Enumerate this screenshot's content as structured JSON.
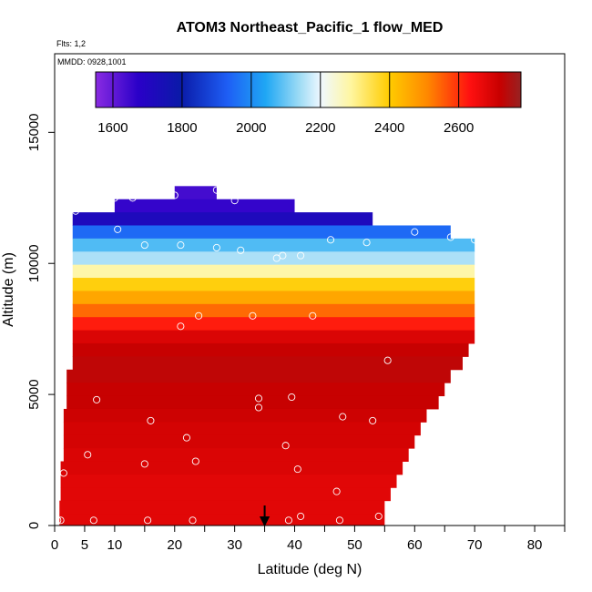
{
  "chart_data": {
    "type": "heatmap",
    "title": "ATOM3 Northeast_Pacific_1 flow_MED",
    "subtitle_flights": "Flts: 1,2",
    "subtitle_dates": "MMDD: 0928,1001",
    "xlabel": "Latitude (deg N)",
    "ylabel": "Altitude (m)",
    "xlim": [
      0,
      85
    ],
    "ylim": [
      0,
      18000
    ],
    "x_ticks": [
      0,
      5,
      10,
      20,
      30,
      40,
      50,
      60,
      70,
      80
    ],
    "y_ticks": [
      0,
      5000,
      10000,
      15000
    ],
    "colorbar": {
      "range": [
        1550,
        2780
      ],
      "ticks": [
        1600,
        1800,
        2000,
        2200,
        2400,
        2600
      ]
    },
    "marker_latitude": 35,
    "altitude_bands": [
      {
        "alt": 12700,
        "lat_start": 20,
        "lat_end": 27,
        "value": 1640
      },
      {
        "alt": 12200,
        "lat_start": 10,
        "lat_end": 40,
        "value": 1660
      },
      {
        "alt": 11700,
        "lat_start": 3,
        "lat_end": 53,
        "value": 1720
      },
      {
        "alt": 11200,
        "lat_start": 3,
        "lat_end": 66,
        "value": 1950
      },
      {
        "alt": 10700,
        "lat_start": 3,
        "lat_end": 70,
        "value": 2080
      },
      {
        "alt": 10200,
        "lat_start": 3,
        "lat_end": 70,
        "value": 2150
      },
      {
        "alt": 9700,
        "lat_start": 3,
        "lat_end": 70,
        "value": 2280
      },
      {
        "alt": 9200,
        "lat_start": 3,
        "lat_end": 70,
        "value": 2390
      },
      {
        "alt": 8700,
        "lat_start": 3,
        "lat_end": 70,
        "value": 2460
      },
      {
        "alt": 8200,
        "lat_start": 3,
        "lat_end": 70,
        "value": 2540
      },
      {
        "alt": 7700,
        "lat_start": 3,
        "lat_end": 70,
        "value": 2620
      },
      {
        "alt": 7200,
        "lat_start": 3,
        "lat_end": 70,
        "value": 2690
      },
      {
        "alt": 6700,
        "lat_start": 3,
        "lat_end": 69,
        "value": 2720
      },
      {
        "alt": 6200,
        "lat_start": 3,
        "lat_end": 68,
        "value": 2730
      },
      {
        "alt": 5700,
        "lat_start": 2,
        "lat_end": 66,
        "value": 2730
      },
      {
        "alt": 5200,
        "lat_start": 2,
        "lat_end": 65,
        "value": 2720
      },
      {
        "alt": 4700,
        "lat_start": 2,
        "lat_end": 64,
        "value": 2720
      },
      {
        "alt": 4200,
        "lat_start": 1.5,
        "lat_end": 62,
        "value": 2710
      },
      {
        "alt": 3700,
        "lat_start": 1.5,
        "lat_end": 61,
        "value": 2700
      },
      {
        "alt": 3200,
        "lat_start": 1.5,
        "lat_end": 60,
        "value": 2700
      },
      {
        "alt": 2700,
        "lat_start": 1.5,
        "lat_end": 59,
        "value": 2690
      },
      {
        "alt": 2200,
        "lat_start": 1,
        "lat_end": 58,
        "value": 2690
      },
      {
        "alt": 1700,
        "lat_start": 1,
        "lat_end": 57,
        "value": 2680
      },
      {
        "alt": 1200,
        "lat_start": 1,
        "lat_end": 56,
        "value": 2680
      },
      {
        "alt": 700,
        "lat_start": 0.8,
        "lat_end": 55,
        "value": 2680
      },
      {
        "alt": 200,
        "lat_start": 0.8,
        "lat_end": 55,
        "value": 2680
      }
    ],
    "observations": [
      {
        "lat": 0.5,
        "alt": 200
      },
      {
        "lat": 1,
        "alt": 200
      },
      {
        "lat": 1.5,
        "alt": 2000
      },
      {
        "lat": 5.5,
        "alt": 2700
      },
      {
        "lat": 6.5,
        "alt": 200
      },
      {
        "lat": 7,
        "alt": 4800
      },
      {
        "lat": 15,
        "alt": 2350
      },
      {
        "lat": 15.5,
        "alt": 200
      },
      {
        "lat": 16,
        "alt": 4000
      },
      {
        "lat": 21,
        "alt": 7600
      },
      {
        "lat": 22,
        "alt": 3350
      },
      {
        "lat": 23,
        "alt": 200
      },
      {
        "lat": 23.5,
        "alt": 2450
      },
      {
        "lat": 24,
        "alt": 8000
      },
      {
        "lat": 33,
        "alt": 8000
      },
      {
        "lat": 34,
        "alt": 4850
      },
      {
        "lat": 34,
        "alt": 4500
      },
      {
        "lat": 38.5,
        "alt": 3050
      },
      {
        "lat": 39,
        "alt": 200
      },
      {
        "lat": 39.5,
        "alt": 4900
      },
      {
        "lat": 40.5,
        "alt": 2150
      },
      {
        "lat": 41,
        "alt": 350
      },
      {
        "lat": 43,
        "alt": 8000
      },
      {
        "lat": 47,
        "alt": 1300
      },
      {
        "lat": 47.5,
        "alt": 200
      },
      {
        "lat": 48,
        "alt": 4150
      },
      {
        "lat": 53,
        "alt": 4000
      },
      {
        "lat": 54,
        "alt": 350
      },
      {
        "lat": 55.5,
        "alt": 6300
      },
      {
        "lat": 10,
        "alt": 12500
      },
      {
        "lat": 13,
        "alt": 12500
      },
      {
        "lat": 20,
        "alt": 12600
      },
      {
        "lat": 27,
        "alt": 12800
      },
      {
        "lat": 30,
        "alt": 12400
      },
      {
        "lat": 3.5,
        "alt": 12000
      },
      {
        "lat": 10.5,
        "alt": 11300
      },
      {
        "lat": 15,
        "alt": 10700
      },
      {
        "lat": 21,
        "alt": 10700
      },
      {
        "lat": 27,
        "alt": 10600
      },
      {
        "lat": 31,
        "alt": 10500
      },
      {
        "lat": 37,
        "alt": 10200
      },
      {
        "lat": 38,
        "alt": 10300
      },
      {
        "lat": 41,
        "alt": 10300
      },
      {
        "lat": 46,
        "alt": 10900
      },
      {
        "lat": 52,
        "alt": 10800
      },
      {
        "lat": 60,
        "alt": 11200
      },
      {
        "lat": 66,
        "alt": 11000
      },
      {
        "lat": 70,
        "alt": 10900
      }
    ]
  }
}
